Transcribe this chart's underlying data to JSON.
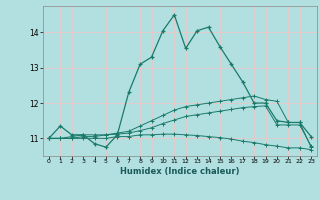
{
  "xlabel": "Humidex (Indice chaleur)",
  "background_color": "#b2e0e0",
  "grid_color": "#e8c8c8",
  "line_color": "#1a7a6a",
  "xlim": [
    -0.5,
    23.5
  ],
  "ylim": [
    10.5,
    14.75
  ],
  "yticks": [
    11,
    12,
    13,
    14
  ],
  "xticks": [
    0,
    1,
    2,
    3,
    4,
    5,
    6,
    7,
    8,
    9,
    10,
    11,
    12,
    13,
    14,
    15,
    16,
    17,
    18,
    19,
    20,
    21,
    22,
    23
  ],
  "line1_x": [
    0,
    1,
    2,
    3,
    4,
    5,
    6,
    7,
    8,
    9,
    10,
    11,
    12,
    13,
    14,
    15,
    16,
    17,
    18,
    19,
    20,
    21,
    22,
    23
  ],
  "line1_y": [
    11.0,
    11.35,
    11.1,
    11.1,
    10.85,
    10.75,
    11.1,
    12.3,
    13.1,
    13.3,
    14.05,
    14.5,
    13.55,
    14.05,
    14.15,
    13.6,
    13.1,
    12.6,
    12.0,
    12.0,
    11.5,
    11.45,
    11.45,
    11.05
  ],
  "line2_x": [
    0,
    1,
    2,
    3,
    4,
    5,
    6,
    7,
    8,
    9,
    10,
    11,
    12,
    13,
    14,
    15,
    16,
    17,
    18,
    19,
    20,
    21,
    22,
    23
  ],
  "line2_y": [
    11.0,
    11.0,
    11.05,
    11.1,
    11.1,
    11.1,
    11.15,
    11.2,
    11.35,
    11.5,
    11.65,
    11.8,
    11.9,
    11.95,
    12.0,
    12.05,
    12.1,
    12.15,
    12.2,
    12.1,
    12.05,
    11.45,
    11.45,
    10.75
  ],
  "line3_x": [
    0,
    1,
    2,
    3,
    4,
    5,
    6,
    7,
    8,
    9,
    10,
    11,
    12,
    13,
    14,
    15,
    16,
    17,
    18,
    19,
    20,
    21,
    22,
    23
  ],
  "line3_y": [
    11.0,
    11.0,
    11.0,
    11.05,
    11.05,
    11.1,
    11.12,
    11.15,
    11.22,
    11.3,
    11.42,
    11.52,
    11.62,
    11.67,
    11.72,
    11.77,
    11.82,
    11.87,
    11.9,
    11.92,
    11.38,
    11.38,
    11.38,
    10.78
  ],
  "line4_x": [
    0,
    1,
    2,
    3,
    4,
    5,
    6,
    7,
    8,
    9,
    10,
    11,
    12,
    13,
    14,
    15,
    16,
    17,
    18,
    19,
    20,
    21,
    22,
    23
  ],
  "line4_y": [
    11.0,
    11.0,
    11.0,
    11.0,
    11.0,
    11.0,
    11.05,
    11.05,
    11.1,
    11.1,
    11.12,
    11.12,
    11.1,
    11.08,
    11.05,
    11.02,
    10.98,
    10.92,
    10.88,
    10.82,
    10.78,
    10.73,
    10.73,
    10.68
  ]
}
